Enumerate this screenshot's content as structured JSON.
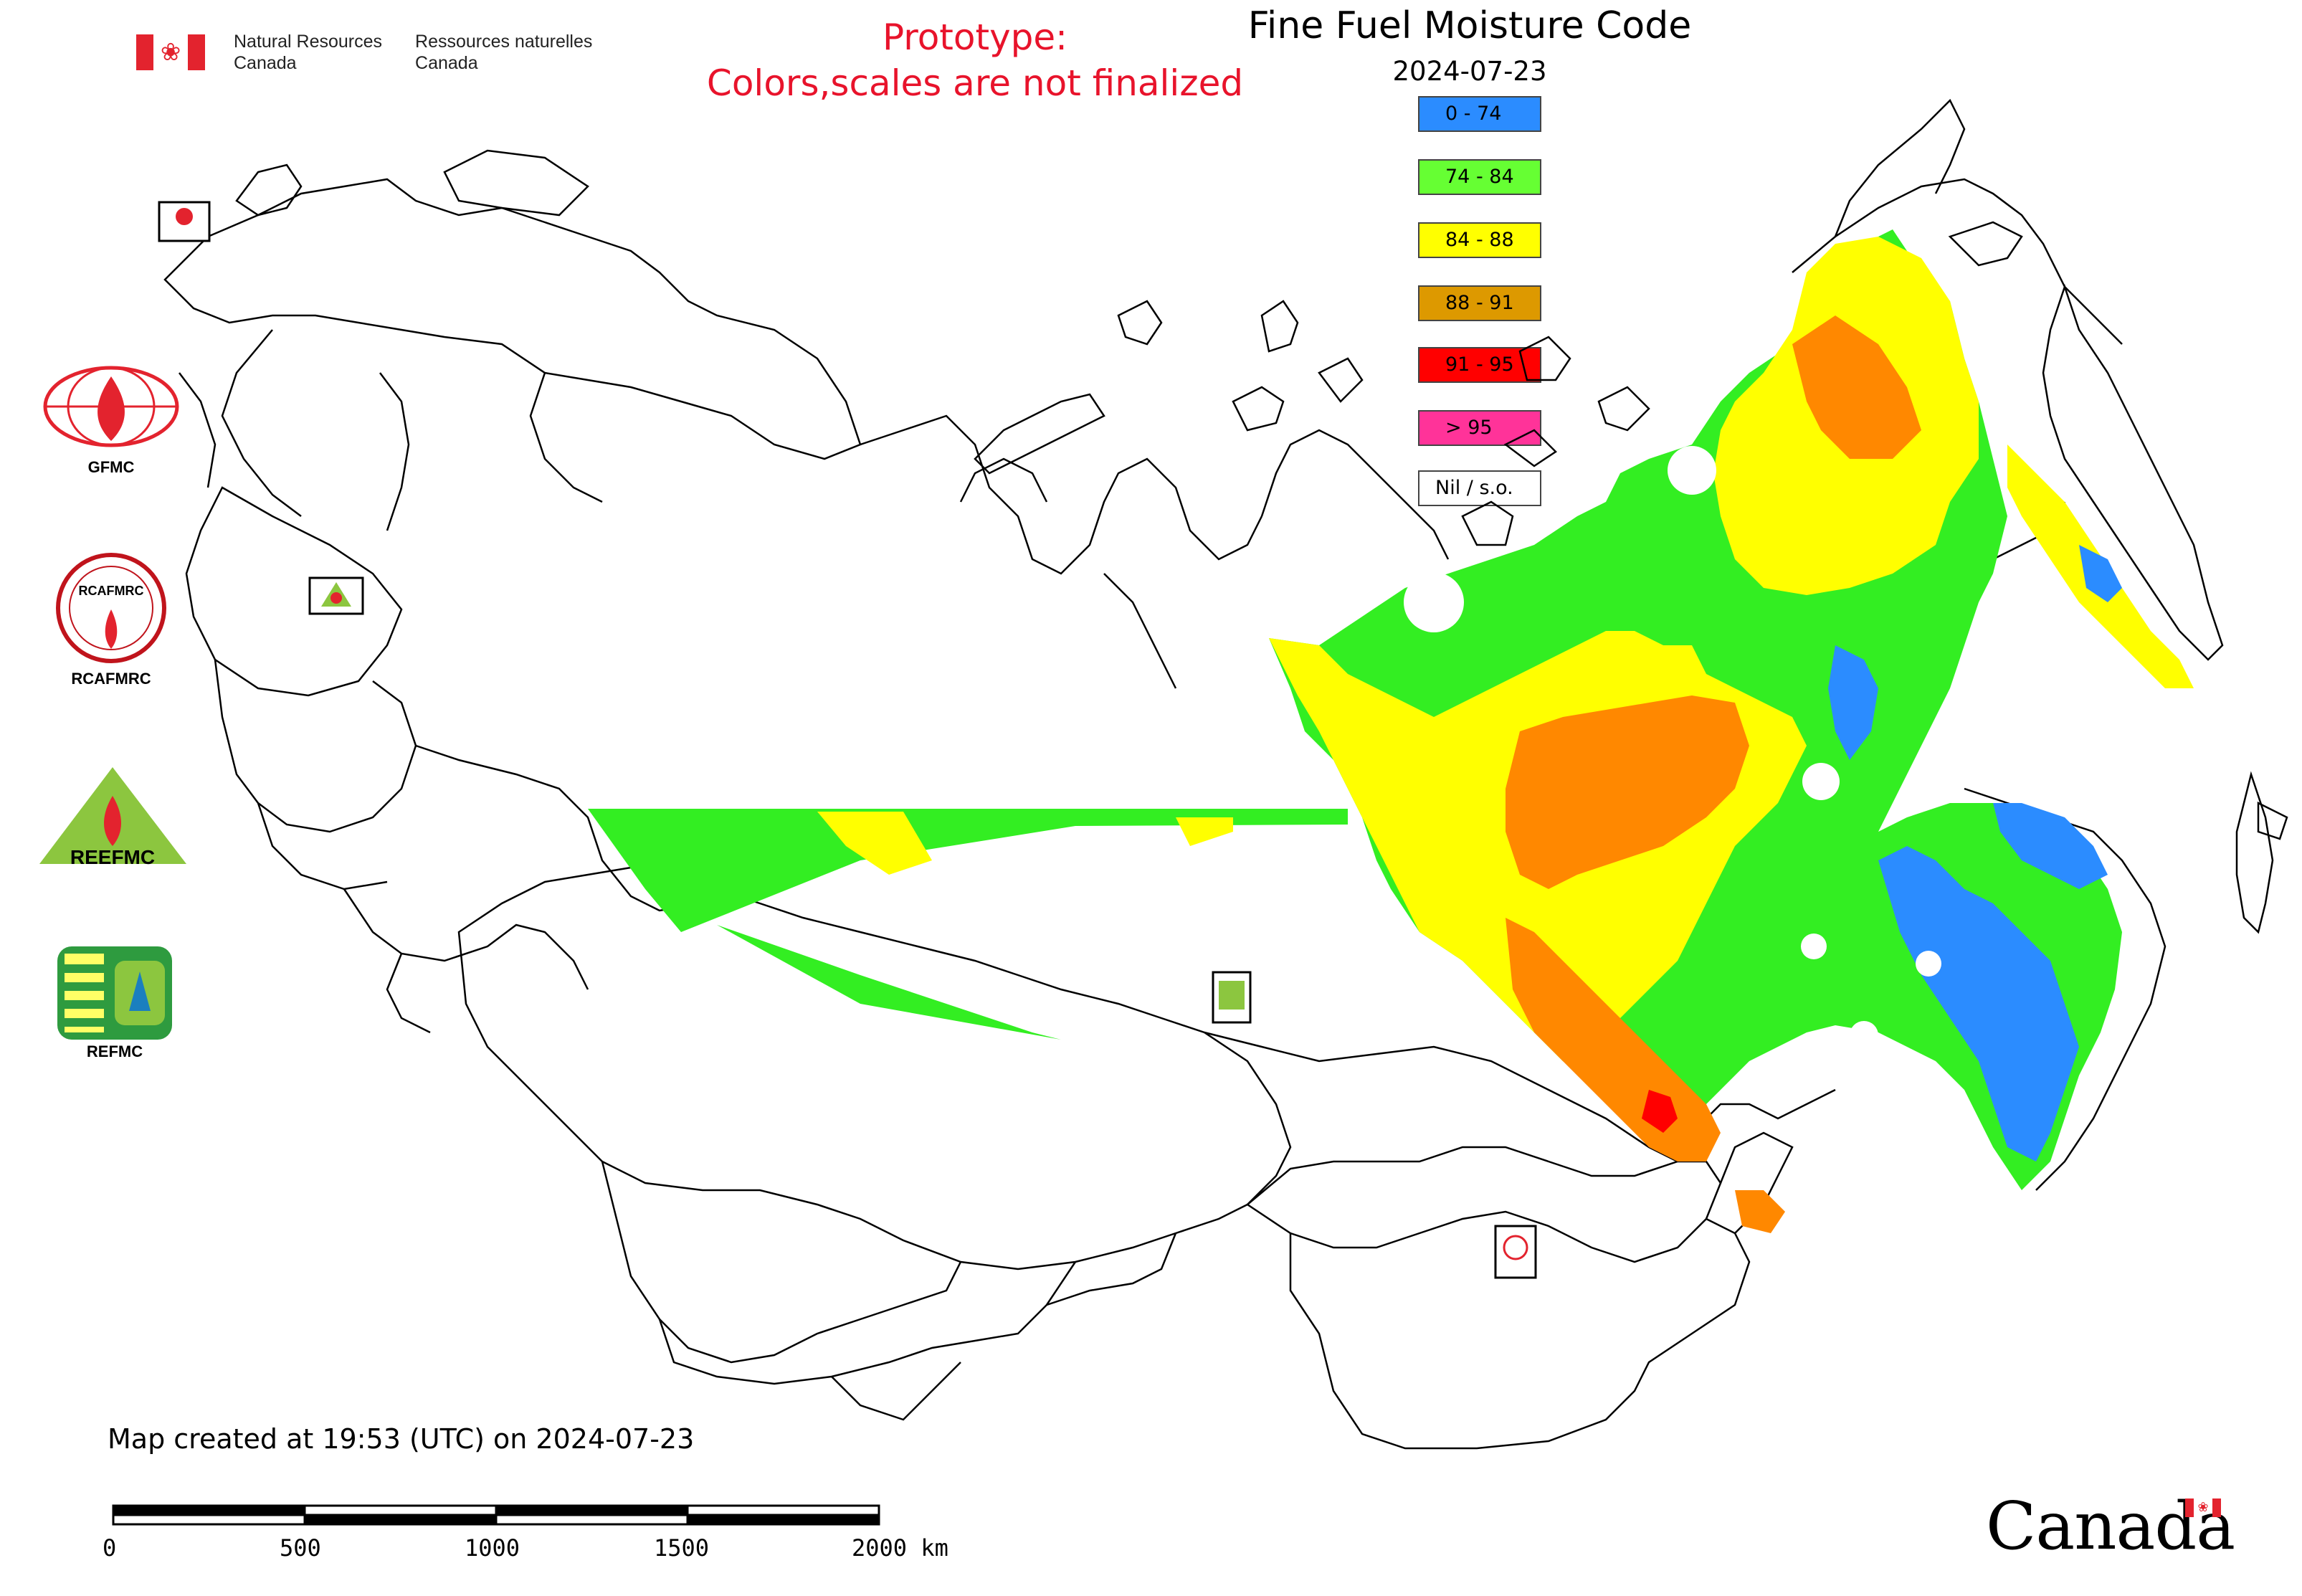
{
  "header": {
    "dept_en_line1": "Natural Resources",
    "dept_en_line2": "Canada",
    "dept_fr_line1": "Ressources naturelles",
    "dept_fr_line2": "Canada",
    "prototype_line1": "Prototype:",
    "prototype_line2": "Colors,scales are not finalized"
  },
  "map": {
    "title": "Fine Fuel Moisture Code",
    "date": "2024-07-23"
  },
  "legend": [
    {
      "label": "0 - 74",
      "color": "#2b8cff"
    },
    {
      "label": "74 - 84",
      "color": "#66ff33"
    },
    {
      "label": "84 - 88",
      "color": "#ffff00"
    },
    {
      "label": "88 - 91",
      "color": "#dd9900"
    },
    {
      "label": "91 - 95",
      "color": "#ff0000"
    },
    {
      "label": "> 95",
      "color": "#ff3399"
    },
    {
      "label": "Nil / s.o.",
      "color": "#ffffff"
    }
  ],
  "logos": {
    "gfmc": "GFMC",
    "rcafmrc": "RCAFMRC",
    "reefmc": "REEFMC",
    "refmc": "REFMC"
  },
  "footer": {
    "created": "Map created at 19:53 (UTC) on 2024-07-23",
    "scale_labels": [
      "0",
      "500",
      "1000",
      "1500",
      "2000 km"
    ],
    "wordmark": "Canada"
  }
}
